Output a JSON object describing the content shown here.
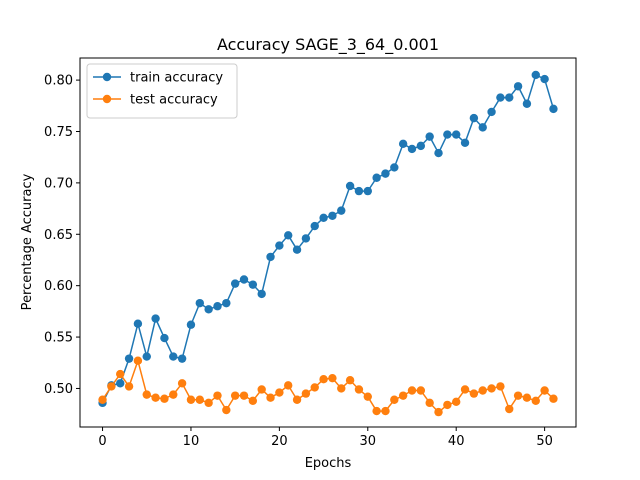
{
  "chart_data": {
    "type": "line",
    "title": "Accuracy SAGE_3_64_0.001",
    "xlabel": "Epochs",
    "ylabel": "Percentage Accuracy",
    "xlim": [
      -2.55,
      53.55
    ],
    "ylim": [
      0.4625,
      0.8215
    ],
    "xticks": [
      0,
      10,
      20,
      30,
      40,
      50
    ],
    "xtick_labels": [
      "0",
      "10",
      "20",
      "30",
      "40",
      "50"
    ],
    "yticks": [
      0.5,
      0.55,
      0.6,
      0.65,
      0.7,
      0.75,
      0.8
    ],
    "ytick_labels": [
      "0.50",
      "0.55",
      "0.60",
      "0.65",
      "0.70",
      "0.75",
      "0.80"
    ],
    "grid": false,
    "legend_position": "top-left",
    "x": [
      0,
      1,
      2,
      3,
      4,
      5,
      6,
      7,
      8,
      9,
      10,
      11,
      12,
      13,
      14,
      15,
      16,
      17,
      18,
      19,
      20,
      21,
      22,
      23,
      24,
      25,
      26,
      27,
      28,
      29,
      30,
      31,
      32,
      33,
      34,
      35,
      36,
      37,
      38,
      39,
      40,
      41,
      42,
      43,
      44,
      45,
      46,
      47,
      48,
      49,
      50,
      51
    ],
    "series": [
      {
        "name": "train accuracy",
        "color": "#1f77b4",
        "values": [
          0.486,
          0.503,
          0.505,
          0.529,
          0.563,
          0.531,
          0.568,
          0.549,
          0.531,
          0.529,
          0.562,
          0.583,
          0.577,
          0.58,
          0.583,
          0.602,
          0.606,
          0.601,
          0.592,
          0.628,
          0.639,
          0.649,
          0.635,
          0.646,
          0.658,
          0.666,
          0.668,
          0.673,
          0.697,
          0.692,
          0.692,
          0.705,
          0.709,
          0.715,
          0.738,
          0.733,
          0.736,
          0.745,
          0.729,
          0.747,
          0.747,
          0.739,
          0.763,
          0.754,
          0.769,
          0.783,
          0.783,
          0.794,
          0.777,
          0.805,
          0.801,
          0.772
        ]
      },
      {
        "name": "test accuracy",
        "color": "#ff7f0e",
        "values": [
          0.489,
          0.502,
          0.514,
          0.502,
          0.527,
          0.494,
          0.491,
          0.49,
          0.494,
          0.505,
          0.489,
          0.489,
          0.486,
          0.493,
          0.479,
          0.493,
          0.493,
          0.488,
          0.499,
          0.491,
          0.496,
          0.503,
          0.489,
          0.495,
          0.501,
          0.509,
          0.51,
          0.5,
          0.508,
          0.499,
          0.492,
          0.478,
          0.478,
          0.489,
          0.493,
          0.498,
          0.498,
          0.486,
          0.477,
          0.484,
          0.487,
          0.499,
          0.495,
          0.498,
          0.5,
          0.502,
          0.48,
          0.493,
          0.491,
          0.488,
          0.498,
          0.49
        ]
      }
    ]
  }
}
